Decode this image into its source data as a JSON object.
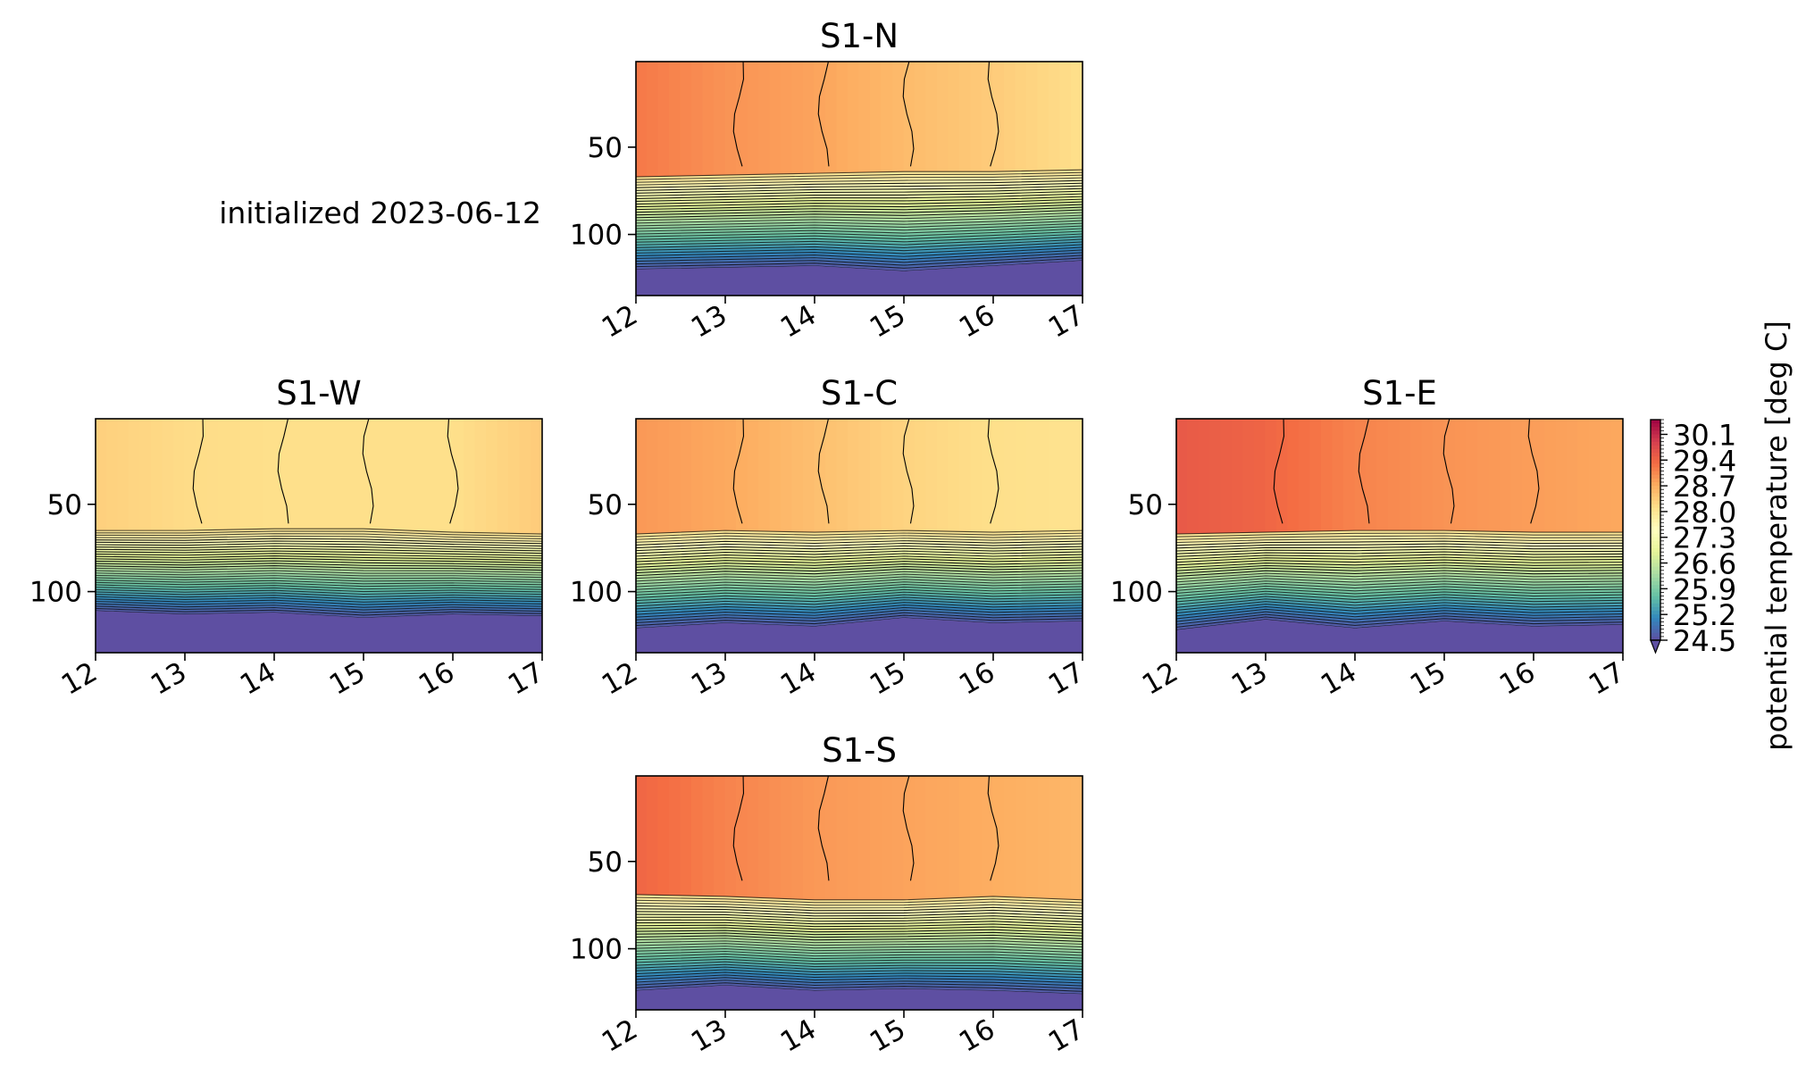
{
  "figure": {
    "annotation": "initialized 2023-06-12"
  },
  "chart_data": {
    "type": "heatmap",
    "x_tick_labels": [
      "12",
      "13",
      "14",
      "15",
      "16",
      "17"
    ],
    "y_tick_labels": [
      "50",
      "100"
    ],
    "xlim": [
      12,
      17
    ],
    "ylim": [
      135,
      1
    ],
    "ticks": {
      "x": [
        12,
        13,
        14,
        15,
        16,
        17
      ],
      "y": [
        50,
        100
      ]
    },
    "colorbar": {
      "label": "potential temperature [deg C]",
      "range": [
        24.5,
        30.5
      ],
      "ticks": [
        30.1,
        29.4,
        28.7,
        28.0,
        27.3,
        26.6,
        25.9,
        25.2,
        24.5
      ],
      "tick_labels": [
        "30.1",
        "29.4",
        "28.7",
        "28.0",
        "27.3",
        "26.6",
        "25.9",
        "25.2",
        "24.5"
      ],
      "extend": "min",
      "cmap": "Spectral_r"
    },
    "panels": [
      {
        "title": "S1-N",
        "row": 0,
        "col": 1,
        "surface_values": [
          29.2,
          28.95,
          28.8,
          28.55,
          28.35,
          28.1
        ],
        "mixed_layer_depth": [
          67,
          66,
          65,
          64,
          64,
          63
        ],
        "thermocline_bottom": [
          120,
          119,
          118,
          121,
          118,
          115
        ]
      },
      {
        "title": "S1-W",
        "row": 1,
        "col": 0,
        "surface_values": [
          28.3,
          28.15,
          28.1,
          28.1,
          28.1,
          28.35
        ],
        "mixed_layer_depth": [
          65,
          65,
          64,
          64,
          66,
          67
        ],
        "thermocline_bottom": [
          111,
          113,
          112,
          115,
          113,
          114
        ]
      },
      {
        "title": "S1-C",
        "row": 1,
        "col": 1,
        "surface_values": [
          28.9,
          28.75,
          28.5,
          28.25,
          28.1,
          28.05
        ],
        "mixed_layer_depth": [
          67,
          65,
          66,
          65,
          66,
          65
        ],
        "thermocline_bottom": [
          121,
          118,
          120,
          115,
          118,
          117
        ]
      },
      {
        "title": "S1-E",
        "row": 1,
        "col": 2,
        "surface_values": [
          29.55,
          29.4,
          29.1,
          28.95,
          28.85,
          28.75
        ],
        "mixed_layer_depth": [
          67,
          66,
          65,
          65,
          66,
          66
        ],
        "thermocline_bottom": [
          122,
          116,
          121,
          117,
          120,
          119
        ]
      },
      {
        "title": "S1-S",
        "row": 2,
        "col": 1,
        "surface_values": [
          29.4,
          29.1,
          28.9,
          28.8,
          28.7,
          28.6
        ],
        "mixed_layer_depth": [
          69,
          70,
          72,
          72,
          70,
          72
        ],
        "thermocline_bottom": [
          124,
          121,
          124,
          123,
          124,
          126
        ]
      }
    ]
  }
}
